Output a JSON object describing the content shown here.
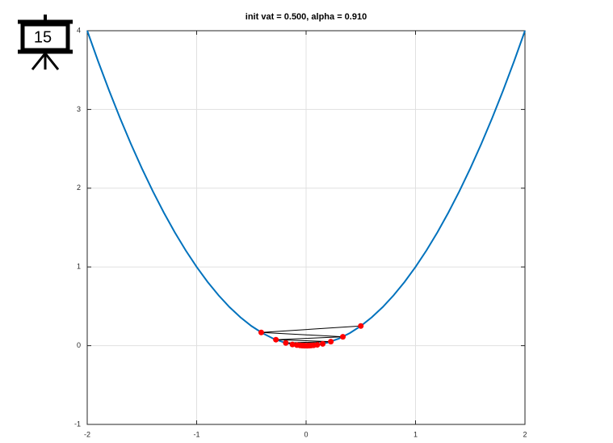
{
  "icon_label": "15",
  "chart_data": {
    "type": "line",
    "title": "init vat = 0.500, alpha = 0.910",
    "xlim": [
      -2,
      2
    ],
    "ylim": [
      -1,
      4
    ],
    "xticks": [
      -2,
      -1,
      0,
      1,
      2
    ],
    "yticks": [
      -1,
      0,
      1,
      2,
      3,
      4
    ],
    "grid": true,
    "series": [
      {
        "color": "#0072bd",
        "x": [
          -2,
          -1.9,
          -1.8,
          -1.7,
          -1.6,
          -1.5,
          -1.4,
          -1.3,
          -1.2,
          -1.1,
          -1,
          -0.9,
          -0.8,
          -0.7,
          -0.6,
          -0.5,
          -0.4,
          -0.3,
          -0.2,
          -0.1,
          0,
          0.1,
          0.2,
          0.3,
          0.4,
          0.5,
          0.6,
          0.7,
          0.8,
          0.9,
          1,
          1.1,
          1.2,
          1.3,
          1.4,
          1.5,
          1.6,
          1.7,
          1.8,
          1.9,
          2
        ],
        "values": [
          4,
          3.61,
          3.24,
          2.89,
          2.56,
          2.25,
          1.96,
          1.69,
          1.44,
          1.21,
          1,
          0.81,
          0.64,
          0.49,
          0.36,
          0.25,
          0.16,
          0.09,
          0.04,
          0.01,
          0,
          0.01,
          0.04,
          0.09,
          0.16,
          0.25,
          0.36,
          0.49,
          0.64,
          0.81,
          1,
          1.21,
          1.44,
          1.69,
          1.96,
          2.25,
          2.56,
          2.89,
          3.24,
          3.61,
          4
        ]
      },
      {
        "color": "#ff0000",
        "line_color": "#000000",
        "markers": true,
        "x": [
          0.5,
          -0.41,
          0.3362,
          -0.2757,
          0.2261,
          -0.1854,
          0.152,
          -0.1246,
          0.1022,
          -0.0838,
          0.0687,
          -0.0564,
          0.0462,
          -0.0379,
          0.0311,
          -0.0255,
          0.0209,
          -0.0171,
          0.014,
          -0.0115,
          0.0094
        ],
        "values": [
          0.25,
          0.1681,
          0.113,
          0.076,
          0.0511,
          0.0344,
          0.0231,
          0.0155,
          0.0104,
          0.007,
          0.0047,
          0.0032,
          0.0021,
          0.0014,
          0.001,
          0.0006,
          0.0004,
          0.0003,
          0.0002,
          0.0001,
          0.0001
        ]
      }
    ]
  }
}
